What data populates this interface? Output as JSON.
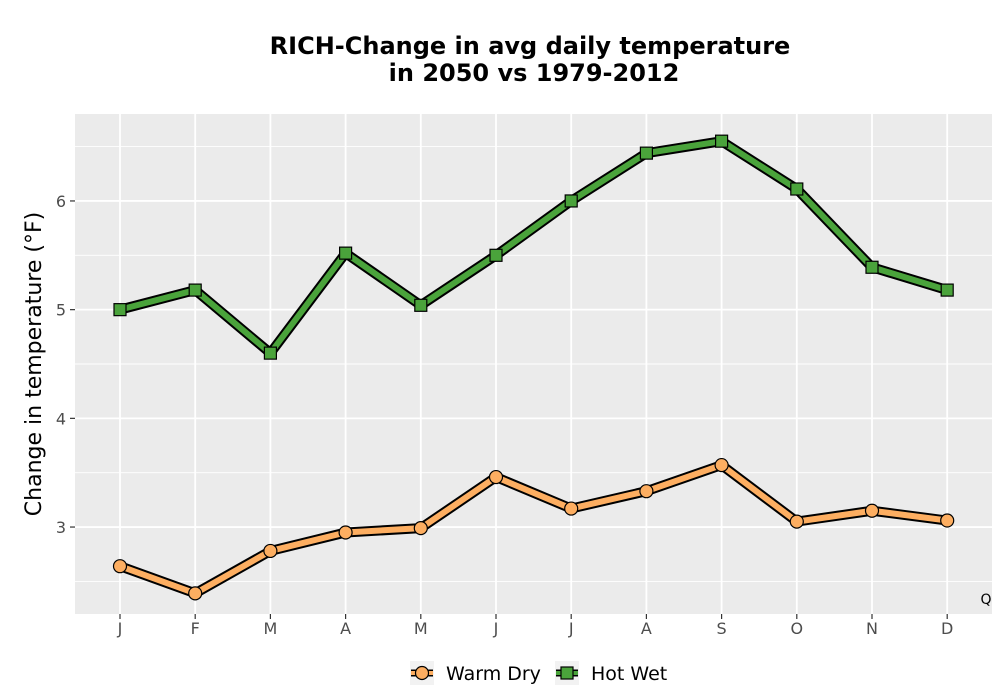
{
  "chart_data": {
    "type": "line",
    "title_lines": [
      "RICH-Change in avg daily temperature",
      "in 2050 vs 1979-2012"
    ],
    "xlabel": "",
    "ylabel": "Change in temperature (°F)",
    "categories": [
      "J",
      "F",
      "M",
      "A",
      "M",
      "J",
      "J",
      "A",
      "S",
      "O",
      "N",
      "D"
    ],
    "ylim": [
      2.2,
      6.8
    ],
    "yticks": [
      3,
      4,
      5,
      6
    ],
    "grid": true,
    "legend_position": "bottom",
    "corner_label": "Q",
    "series": [
      {
        "name": "Warm Dry",
        "marker": "circle",
        "color": "#fdae61",
        "values": [
          2.64,
          2.39,
          2.78,
          2.95,
          2.99,
          3.46,
          3.17,
          3.33,
          3.57,
          3.05,
          3.15,
          3.06
        ]
      },
      {
        "name": "Hot Wet",
        "marker": "square",
        "color": "#4aa33b",
        "values": [
          5.0,
          5.18,
          4.6,
          5.52,
          5.04,
          5.5,
          6.0,
          6.44,
          6.55,
          6.11,
          5.39,
          5.18
        ]
      }
    ]
  },
  "colors": {
    "panel_background": "#ebebeb",
    "grid_line": "#ffffff",
    "outline": "#000000"
  }
}
